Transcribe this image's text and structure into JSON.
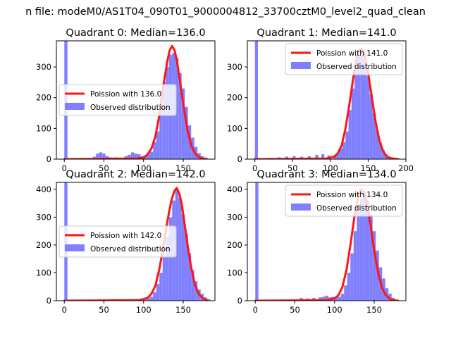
{
  "figure": {
    "suptitle": "n file: modeM0/AS1T04_090T01_9000004812_33700cztM0_level2_quad_clean"
  },
  "colors": {
    "hist": "#6a6aff",
    "poisson": "#ff1515",
    "axis": "#000000",
    "background": "#ffffff"
  },
  "chart_data": [
    {
      "type": "histogram+line",
      "title": "Quadrant 0: Median=136.0",
      "median": 136,
      "xlim": [
        -10,
        190
      ],
      "ylim": [
        0,
        385
      ],
      "xticks": [
        0,
        50,
        100,
        150
      ],
      "yticks": [
        0,
        100,
        200,
        300
      ],
      "legend_placement": "center-left",
      "legend": [
        "Poission with 136.0",
        "Observed distribution"
      ],
      "hist": {
        "name": "Observed distribution",
        "bin_width": 4,
        "bins": [
          [
            0,
            385
          ],
          [
            36,
            8
          ],
          [
            40,
            18
          ],
          [
            44,
            22
          ],
          [
            48,
            18
          ],
          [
            52,
            10
          ],
          [
            56,
            6
          ],
          [
            60,
            5
          ],
          [
            64,
            6
          ],
          [
            68,
            4
          ],
          [
            72,
            4
          ],
          [
            76,
            10
          ],
          [
            80,
            14
          ],
          [
            84,
            22
          ],
          [
            88,
            18
          ],
          [
            92,
            16
          ],
          [
            96,
            10
          ],
          [
            100,
            12
          ],
          [
            104,
            16
          ],
          [
            108,
            24
          ],
          [
            112,
            55
          ],
          [
            116,
            90
          ],
          [
            120,
            180
          ],
          [
            124,
            250
          ],
          [
            128,
            300
          ],
          [
            132,
            340
          ],
          [
            136,
            345
          ],
          [
            140,
            330
          ],
          [
            144,
            280
          ],
          [
            148,
            230
          ],
          [
            152,
            170
          ],
          [
            156,
            110
          ],
          [
            160,
            70
          ],
          [
            164,
            40
          ],
          [
            168,
            20
          ],
          [
            172,
            10
          ],
          [
            176,
            5
          ]
        ]
      },
      "poisson_curve": {
        "name": "Poission with 136.0",
        "x": [
          0,
          90,
          100,
          105,
          110,
          115,
          120,
          125,
          130,
          133,
          136,
          139,
          142,
          145,
          150,
          155,
          160,
          165,
          170,
          175,
          180
        ],
        "y": [
          0,
          2,
          5,
          15,
          35,
          75,
          145,
          240,
          320,
          355,
          368,
          355,
          320,
          270,
          180,
          100,
          45,
          18,
          6,
          2,
          0
        ]
      }
    },
    {
      "type": "histogram+line",
      "title": "Quadrant 1: Median=141.0",
      "median": 141,
      "xlim": [
        -10,
        200
      ],
      "ylim": [
        0,
        385
      ],
      "xticks": [
        0,
        50,
        100,
        150,
        200
      ],
      "yticks": [
        0,
        100,
        200,
        300
      ],
      "legend_placement": "top-right",
      "legend": [
        "Poission with 141.0",
        "Observed distribution"
      ],
      "hist": {
        "name": "Observed distribution",
        "bin_width": 4,
        "bins": [
          [
            0,
            385
          ],
          [
            20,
            4
          ],
          [
            30,
            6
          ],
          [
            40,
            8
          ],
          [
            50,
            10
          ],
          [
            60,
            8
          ],
          [
            70,
            10
          ],
          [
            80,
            14
          ],
          [
            88,
            16
          ],
          [
            96,
            12
          ],
          [
            104,
            12
          ],
          [
            108,
            20
          ],
          [
            112,
            35
          ],
          [
            116,
            55
          ],
          [
            120,
            90
          ],
          [
            124,
            160
          ],
          [
            128,
            230
          ],
          [
            132,
            290
          ],
          [
            136,
            340
          ],
          [
            140,
            345
          ],
          [
            144,
            320
          ],
          [
            148,
            270
          ],
          [
            152,
            210
          ],
          [
            156,
            150
          ],
          [
            160,
            95
          ],
          [
            164,
            55
          ],
          [
            168,
            30
          ],
          [
            172,
            15
          ],
          [
            176,
            8
          ],
          [
            180,
            4
          ],
          [
            188,
            2
          ]
        ]
      },
      "poisson_curve": {
        "name": "Poission with 141.0",
        "x": [
          0,
          95,
          105,
          110,
          115,
          120,
          125,
          130,
          135,
          138,
          141,
          144,
          147,
          150,
          155,
          160,
          165,
          170,
          175,
          180,
          190
        ],
        "y": [
          0,
          2,
          8,
          20,
          45,
          100,
          175,
          260,
          330,
          355,
          360,
          350,
          320,
          280,
          200,
          120,
          60,
          25,
          8,
          3,
          0
        ]
      }
    },
    {
      "type": "histogram+line",
      "title": "Quadrant 2: Median=142.0",
      "median": 142,
      "xlim": [
        -10,
        190
      ],
      "ylim": [
        0,
        425
      ],
      "xticks": [
        0,
        50,
        100,
        150
      ],
      "yticks": [
        0,
        100,
        200,
        300,
        400
      ],
      "legend_placement": "center-left",
      "legend": [
        "Poission with 142.0",
        "Observed distribution"
      ],
      "hist": {
        "name": "Observed distribution",
        "bin_width": 4,
        "bins": [
          [
            0,
            425
          ],
          [
            84,
            3
          ],
          [
            92,
            2
          ],
          [
            100,
            4
          ],
          [
            104,
            8
          ],
          [
            108,
            14
          ],
          [
            112,
            30
          ],
          [
            116,
            60
          ],
          [
            120,
            100
          ],
          [
            124,
            160
          ],
          [
            128,
            230
          ],
          [
            132,
            300
          ],
          [
            136,
            360
          ],
          [
            140,
            400
          ],
          [
            144,
            370
          ],
          [
            148,
            310
          ],
          [
            152,
            240
          ],
          [
            156,
            170
          ],
          [
            160,
            110
          ],
          [
            164,
            70
          ],
          [
            168,
            40
          ],
          [
            172,
            25
          ],
          [
            176,
            12
          ],
          [
            180,
            6
          ]
        ]
      },
      "poisson_curve": {
        "name": "Poission with 142.0",
        "x": [
          0,
          95,
          105,
          110,
          115,
          120,
          125,
          130,
          135,
          139,
          142,
          145,
          148,
          152,
          156,
          160,
          165,
          170,
          175,
          180
        ],
        "y": [
          0,
          2,
          10,
          25,
          55,
          115,
          195,
          285,
          360,
          395,
          405,
          385,
          350,
          270,
          190,
          120,
          55,
          22,
          8,
          2
        ]
      }
    },
    {
      "type": "histogram+line",
      "title": "Quadrant 3: Median=134.0",
      "median": 134,
      "xlim": [
        -10,
        190
      ],
      "ylim": [
        0,
        425
      ],
      "xticks": [
        0,
        50,
        100,
        150
      ],
      "yticks": [
        0,
        100,
        200,
        300,
        400
      ],
      "legend_placement": "top-right",
      "legend": [
        "Poission with 134.0",
        "Observed distribution"
      ],
      "hist": {
        "name": "Observed distribution",
        "bin_width": 4,
        "bins": [
          [
            0,
            425
          ],
          [
            56,
            10
          ],
          [
            64,
            8
          ],
          [
            72,
            10
          ],
          [
            80,
            12
          ],
          [
            84,
            14
          ],
          [
            88,
            18
          ],
          [
            92,
            12
          ],
          [
            96,
            14
          ],
          [
            100,
            10
          ],
          [
            104,
            14
          ],
          [
            108,
            25
          ],
          [
            112,
            55
          ],
          [
            116,
            100
          ],
          [
            120,
            170
          ],
          [
            124,
            250
          ],
          [
            128,
            320
          ],
          [
            132,
            370
          ],
          [
            136,
            390
          ],
          [
            140,
            360
          ],
          [
            144,
            310
          ],
          [
            148,
            250
          ],
          [
            152,
            180
          ],
          [
            156,
            120
          ],
          [
            160,
            80
          ],
          [
            164,
            45
          ],
          [
            168,
            25
          ],
          [
            172,
            10
          ]
        ]
      },
      "poisson_curve": {
        "name": "Poission with 134.0",
        "x": [
          0,
          90,
          100,
          105,
          110,
          115,
          120,
          125,
          128,
          131,
          134,
          137,
          140,
          145,
          150,
          155,
          160,
          165,
          170,
          175,
          180
        ],
        "y": [
          0,
          2,
          8,
          20,
          50,
          110,
          200,
          300,
          350,
          385,
          400,
          390,
          360,
          280,
          180,
          100,
          45,
          18,
          6,
          2,
          0
        ]
      }
    }
  ]
}
